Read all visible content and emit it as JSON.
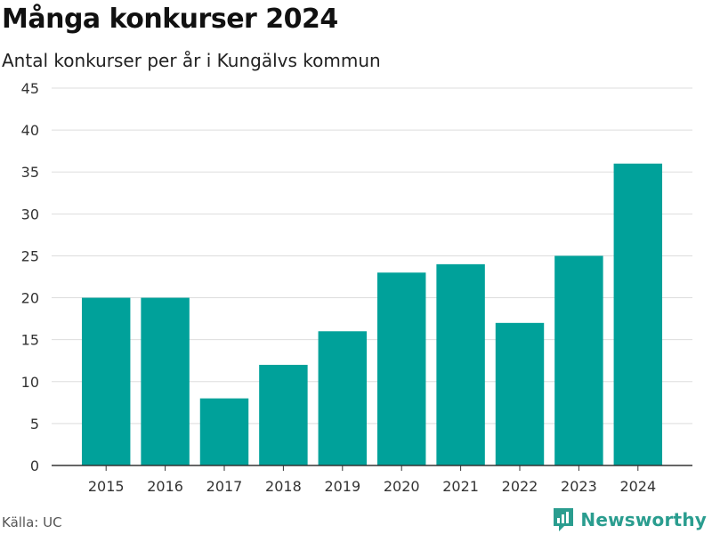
{
  "title": "Många konkurser 2024",
  "subtitle": "Antal konkurser per år i Kungälvs kommun",
  "source": "Källa: UC",
  "brand": {
    "name": "Newsworthy",
    "logo_icon": "newsworthy-logo-icon"
  },
  "colors": {
    "bar": "#00a19a",
    "grid": "#dddddd",
    "axis": "#333333",
    "brand": "#2a9d8f"
  },
  "chart_data": {
    "type": "bar",
    "title": "Många konkurser 2024",
    "subtitle": "Antal konkurser per år i Kungälvs kommun",
    "xlabel": "",
    "ylabel": "",
    "categories": [
      "2015",
      "2016",
      "2017",
      "2018",
      "2019",
      "2020",
      "2021",
      "2022",
      "2023",
      "2024"
    ],
    "values": [
      20,
      20,
      8,
      12,
      16,
      23,
      24,
      17,
      25,
      36
    ],
    "ylim": [
      0,
      45
    ],
    "yticks": [
      0,
      5,
      10,
      15,
      20,
      25,
      30,
      35,
      40,
      45
    ],
    "grid": true,
    "legend": "none"
  }
}
